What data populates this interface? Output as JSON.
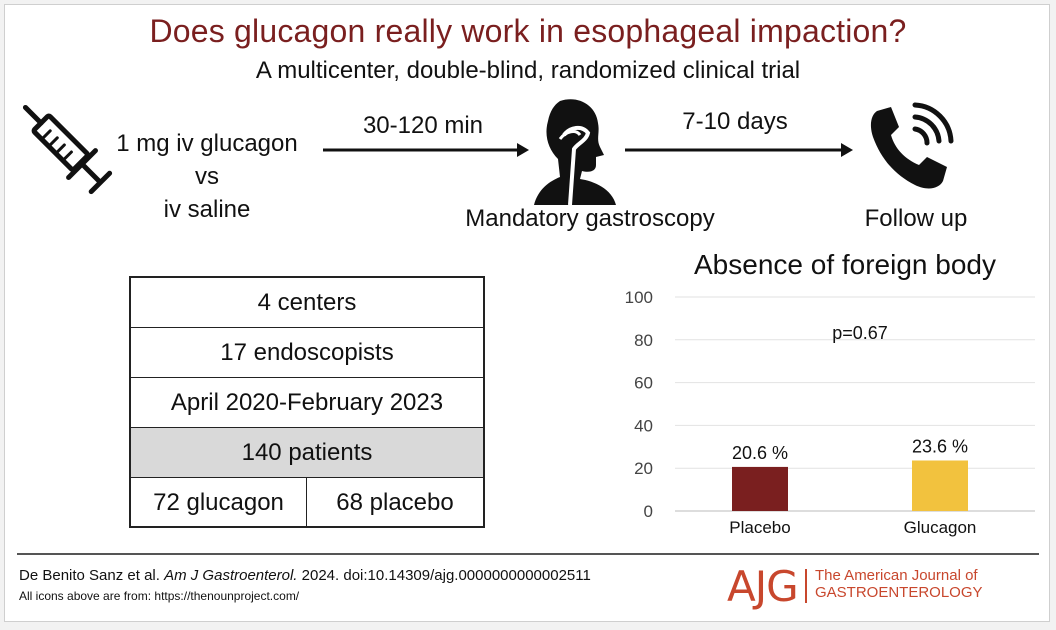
{
  "header": {
    "title": "Does glucagon really work in esophageal impaction?",
    "subtitle": "A multicenter, double-blind, randomized clinical trial"
  },
  "flow": {
    "intervention_line1": "1 mg iv glucagon",
    "intervention_line2": "vs",
    "intervention_line3": "iv saline",
    "interval1": "30-120 min",
    "procedure": "Mandatory gastroscopy",
    "interval2": "7-10 days",
    "followup": "Follow up",
    "icons": [
      "syringe-icon",
      "gastroscopy-person-icon",
      "phone-icon"
    ]
  },
  "table": {
    "rows": [
      "4 centers",
      "17 endoscopists",
      "April 2020-February 2023",
      "140 patients"
    ],
    "split": [
      "72 glucagon",
      "68 placebo"
    ]
  },
  "chart_data": {
    "type": "bar",
    "title": "Absence of foreign body",
    "categories": [
      "Placebo",
      "Glucagon"
    ],
    "values": [
      20.6,
      23.6
    ],
    "value_labels": [
      "20.6 %",
      "23.6 %"
    ],
    "colors": [
      "#7a1f1f",
      "#f2c23e"
    ],
    "ylim": [
      0,
      100
    ],
    "yticks": [
      "0",
      "20",
      "40",
      "60",
      "80",
      "100"
    ],
    "annotation": "p=0.67",
    "grid": true
  },
  "footer": {
    "citation_authors": "De Benito Sanz et al. ",
    "citation_journal": "Am J Gastroenterol.",
    "citation_rest": " 2024. doi:10.14309/ajg.0000000000002511",
    "icons_note": "All icons above are from: https://thenounproject.com/",
    "logo_text": "AJG",
    "journal_line1": "The American Journal of",
    "journal_line2": "GASTROENTEROLOGY"
  },
  "colors": {
    "title": "#7a1f1f",
    "brand": "#c8472d"
  }
}
